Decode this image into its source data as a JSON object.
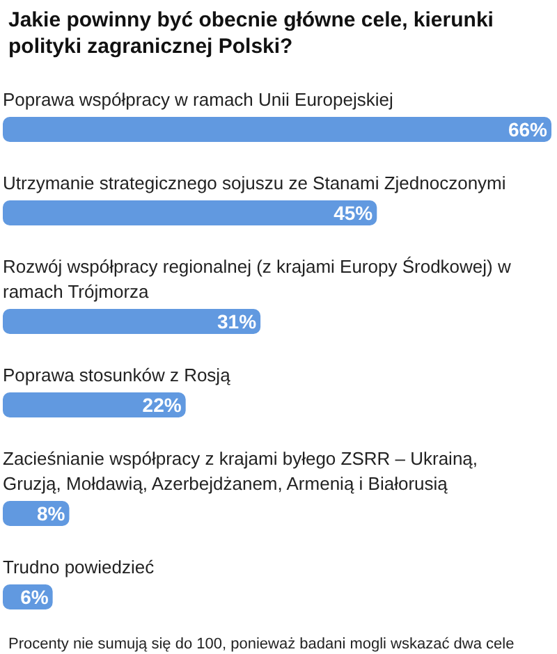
{
  "chart_data": {
    "type": "bar",
    "orientation": "horizontal",
    "title": "Jakie powinny być obecnie główne cele, kierunki polityki zagranicznej Polski?",
    "categories": [
      "Poprawa współpracy w ramach Unii Europejskiej",
      "Utrzymanie strategicznego sojuszu ze Stanami Zjednoczonymi",
      "Rozwój współpracy regionalnej (z krajami Europy Środkowej) w ramach Trójmorza",
      "Poprawa stosunków z Rosją",
      "Zacieśnianie współpracy z krajami byłego ZSRR – Ukrainą, Gruzją, Mołdawią, Azerbejdżanem, Armenią i Białorusią",
      "Trudno powiedzieć"
    ],
    "values": [
      66,
      45,
      31,
      22,
      8,
      6
    ],
    "value_labels": [
      "66%",
      "45%",
      "31%",
      "22%",
      "8%",
      "6%"
    ],
    "color": "#6199e0",
    "annotations": [
      "Procenty nie sumują się do 100, ponieważ badani mogli wskazać dwa cele"
    ]
  }
}
